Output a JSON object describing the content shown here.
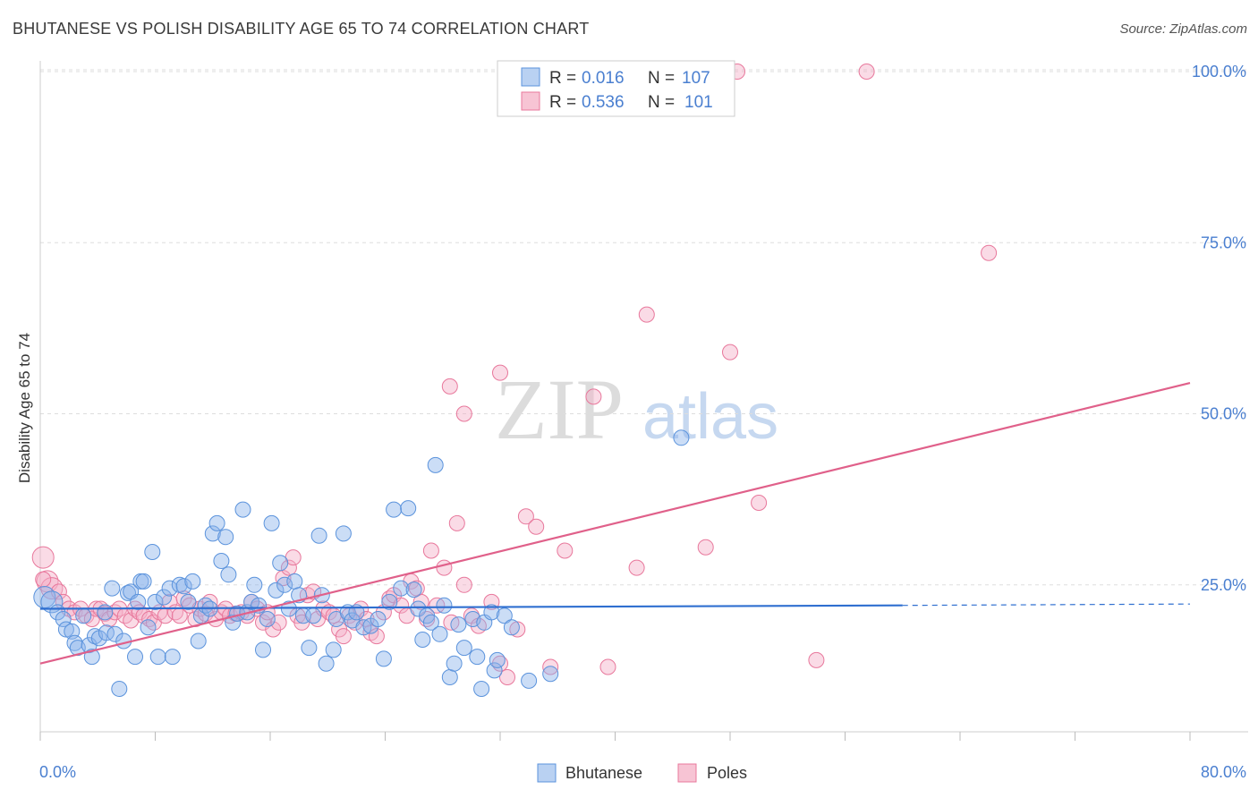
{
  "title": "BHUTANESE VS POLISH DISABILITY AGE 65 TO 74 CORRELATION CHART",
  "source": "Source: ZipAtlas.com",
  "watermark": {
    "zip": "ZIP",
    "atlas": "atlas"
  },
  "colors": {
    "blue": "#5b93dc",
    "blue_fill": "#b9d1f2",
    "pink": "#e8789c",
    "pink_fill": "#f7c4d4",
    "tick": "#4a7fd0",
    "grid": "#dddddd"
  },
  "legend": {
    "rows": [
      {
        "r_label": "R =",
        "r_value": "0.016",
        "n_label": "N =",
        "n_value": "107"
      },
      {
        "r_label": "R =",
        "r_value": "0.536",
        "n_label": "N =",
        "n_value": "101"
      }
    ]
  },
  "bottom_legend": [
    "Bhutanese",
    "Poles"
  ],
  "chart_data": {
    "type": "scatter",
    "title": "BHUTANESE VS POLISH DISABILITY AGE 65 TO 74 CORRELATION CHART",
    "xlabel": "",
    "ylabel": "Disability Age 65 to 74",
    "xlim": [
      0,
      80
    ],
    "ylim": [
      0,
      105
    ],
    "x_tick_labels": [
      "0.0%",
      "80.0%"
    ],
    "y_ticks": [
      25,
      50,
      75,
      100
    ],
    "y_tick_labels": [
      "25.0%",
      "50.0%",
      "75.0%",
      "100.0%"
    ],
    "grid": true,
    "legend_position": "top-center",
    "series": [
      {
        "name": "Bhutanese",
        "color": "#5b93dc",
        "r": 0.016,
        "n": 107,
        "trend": {
          "x0": 0,
          "y0": 21.5,
          "x1": 60,
          "y1": 22.0,
          "x_dashed_end": 80,
          "y_dashed_end": 22.2
        },
        "points": [
          [
            0.3,
            23.2
          ],
          [
            0.8,
            22.5
          ],
          [
            1.2,
            21
          ],
          [
            1.6,
            20
          ],
          [
            1.8,
            18.5
          ],
          [
            2.2,
            18.2
          ],
          [
            2.4,
            16.5
          ],
          [
            2.6,
            15.8
          ],
          [
            3.0,
            20.5
          ],
          [
            3.4,
            16.2
          ],
          [
            3.6,
            14.5
          ],
          [
            3.8,
            17.5
          ],
          [
            4.1,
            17.2
          ],
          [
            4.5,
            21
          ],
          [
            4.6,
            18
          ],
          [
            5.0,
            24.5
          ],
          [
            5.2,
            17.8
          ],
          [
            5.5,
            9.8
          ],
          [
            5.8,
            16.8
          ],
          [
            6.1,
            23.8
          ],
          [
            6.3,
            24
          ],
          [
            6.6,
            14.5
          ],
          [
            6.8,
            22.5
          ],
          [
            7.0,
            25.5
          ],
          [
            7.2,
            25.5
          ],
          [
            7.5,
            18.8
          ],
          [
            7.8,
            29.8
          ],
          [
            8.0,
            22.5
          ],
          [
            8.2,
            14.5
          ],
          [
            8.6,
            23.2
          ],
          [
            9.0,
            24.5
          ],
          [
            9.2,
            14.5
          ],
          [
            9.7,
            25
          ],
          [
            10,
            24.8
          ],
          [
            10.3,
            22.5
          ],
          [
            10.6,
            25.5
          ],
          [
            11.0,
            16.8
          ],
          [
            11.2,
            20.5
          ],
          [
            11.5,
            22
          ],
          [
            11.8,
            21.5
          ],
          [
            12.0,
            32.5
          ],
          [
            12.3,
            34
          ],
          [
            12.6,
            28.5
          ],
          [
            12.9,
            32
          ],
          [
            13.1,
            26.5
          ],
          [
            13.4,
            19.5
          ],
          [
            13.7,
            20.8
          ],
          [
            14.1,
            36
          ],
          [
            14.4,
            21
          ],
          [
            14.7,
            22.5
          ],
          [
            14.9,
            25
          ],
          [
            15.2,
            22
          ],
          [
            15.5,
            15.5
          ],
          [
            15.8,
            20
          ],
          [
            16.1,
            34
          ],
          [
            16.4,
            24.2
          ],
          [
            16.7,
            28.2
          ],
          [
            17,
            25
          ],
          [
            17.3,
            21.5
          ],
          [
            17.7,
            25.5
          ],
          [
            18.0,
            23.5
          ],
          [
            18.3,
            20.5
          ],
          [
            18.7,
            15.8
          ],
          [
            19.0,
            20.5
          ],
          [
            19.4,
            32.2
          ],
          [
            19.6,
            23.5
          ],
          [
            19.9,
            13.5
          ],
          [
            20.4,
            15.5
          ],
          [
            20.6,
            20
          ],
          [
            21.1,
            32.5
          ],
          [
            21.4,
            21
          ],
          [
            21.7,
            19.8
          ],
          [
            22.0,
            21
          ],
          [
            22.5,
            18.8
          ],
          [
            23.0,
            19
          ],
          [
            23.5,
            20
          ],
          [
            23.9,
            14.2
          ],
          [
            24.3,
            22.5
          ],
          [
            24.6,
            36
          ],
          [
            25.1,
            24.5
          ],
          [
            25.6,
            36.2
          ],
          [
            26.0,
            24.3
          ],
          [
            26.3,
            21.5
          ],
          [
            26.6,
            17
          ],
          [
            26.9,
            20.5
          ],
          [
            27.2,
            19.5
          ],
          [
            27.5,
            42.5
          ],
          [
            27.8,
            17.8
          ],
          [
            28.1,
            22
          ],
          [
            28.5,
            11.5
          ],
          [
            28.8,
            13.5
          ],
          [
            29.1,
            19.2
          ],
          [
            29.5,
            15.8
          ],
          [
            30.1,
            20
          ],
          [
            30.4,
            14.5
          ],
          [
            30.7,
            9.8
          ],
          [
            30.9,
            19.5
          ],
          [
            31.4,
            21
          ],
          [
            31.6,
            12.5
          ],
          [
            31.8,
            14
          ],
          [
            32.3,
            20.5
          ],
          [
            32.8,
            18.8
          ],
          [
            34.0,
            11
          ],
          [
            35.5,
            12
          ],
          [
            44.6,
            46.5
          ]
        ]
      },
      {
        "name": "Poles",
        "color": "#e8789c",
        "r": 0.536,
        "n": 101,
        "trend": {
          "x0": 0,
          "y0": 13.5,
          "x1": 80,
          "y1": 54.5
        },
        "points": [
          [
            0.2,
            29
          ],
          [
            0.5,
            25.5
          ],
          [
            0.8,
            24.5
          ],
          [
            1.3,
            24
          ],
          [
            1.6,
            22.5
          ],
          [
            2.0,
            21.5
          ],
          [
            2.4,
            21
          ],
          [
            2.8,
            21.5
          ],
          [
            3.2,
            20.5
          ],
          [
            3.6,
            20
          ],
          [
            3.9,
            21.5
          ],
          [
            4.2,
            21.5
          ],
          [
            4.5,
            20.8
          ],
          [
            4.8,
            20
          ],
          [
            5.2,
            21
          ],
          [
            5.5,
            21.5
          ],
          [
            5.9,
            20.5
          ],
          [
            6.3,
            19.8
          ],
          [
            6.6,
            21.5
          ],
          [
            6.9,
            21
          ],
          [
            7.2,
            20.5
          ],
          [
            7.6,
            20
          ],
          [
            7.9,
            19.5
          ],
          [
            8.3,
            21
          ],
          [
            8.7,
            20.5
          ],
          [
            9.0,
            22.5
          ],
          [
            9.4,
            21
          ],
          [
            9.7,
            20.5
          ],
          [
            10.0,
            23
          ],
          [
            10.4,
            22
          ],
          [
            10.8,
            20
          ],
          [
            11.1,
            21.5
          ],
          [
            11.5,
            20.8
          ],
          [
            11.8,
            22.5
          ],
          [
            12.2,
            20
          ],
          [
            12.6,
            21
          ],
          [
            12.9,
            21.5
          ],
          [
            13.2,
            20.5
          ],
          [
            13.6,
            20.8
          ],
          [
            14.0,
            21
          ],
          [
            14.4,
            20.5
          ],
          [
            14.7,
            22.5
          ],
          [
            15.1,
            21.5
          ],
          [
            15.5,
            19.5
          ],
          [
            15.8,
            21
          ],
          [
            16.2,
            18.5
          ],
          [
            16.6,
            19.5
          ],
          [
            16.9,
            26
          ],
          [
            17.3,
            27.5
          ],
          [
            17.6,
            29
          ],
          [
            17.9,
            20.5
          ],
          [
            18.2,
            19.5
          ],
          [
            18.6,
            23.5
          ],
          [
            19.0,
            24
          ],
          [
            19.3,
            20
          ],
          [
            19.7,
            21.5
          ],
          [
            20.1,
            21
          ],
          [
            20.4,
            20.5
          ],
          [
            20.8,
            18.5
          ],
          [
            21.1,
            17.5
          ],
          [
            21.5,
            20.5
          ],
          [
            21.9,
            19.5
          ],
          [
            22.3,
            21.5
          ],
          [
            22.7,
            20
          ],
          [
            23.0,
            18
          ],
          [
            23.4,
            17.5
          ],
          [
            23.9,
            21
          ],
          [
            24.3,
            23
          ],
          [
            24.6,
            23.5
          ],
          [
            25.1,
            22
          ],
          [
            25.5,
            20.5
          ],
          [
            25.8,
            25.5
          ],
          [
            26.2,
            24.5
          ],
          [
            26.5,
            22.5
          ],
          [
            26.9,
            20
          ],
          [
            27.2,
            30
          ],
          [
            27.6,
            22
          ],
          [
            28.1,
            27.5
          ],
          [
            28.6,
            19.5
          ],
          [
            29.0,
            34
          ],
          [
            29.5,
            25
          ],
          [
            30.0,
            20.5
          ],
          [
            30.5,
            19
          ],
          [
            31.4,
            22.5
          ],
          [
            32.0,
            13.5
          ],
          [
            32.5,
            11.5
          ],
          [
            33.2,
            18.5
          ],
          [
            33.8,
            35
          ],
          [
            34.5,
            33.5
          ],
          [
            35.5,
            13
          ],
          [
            36.5,
            30
          ],
          [
            38.5,
            52.5
          ],
          [
            39.5,
            13
          ],
          [
            40.5,
            100
          ],
          [
            41.5,
            27.5
          ],
          [
            42.2,
            64.5
          ],
          [
            46.3,
            30.5
          ],
          [
            48.0,
            59
          ],
          [
            48.5,
            100
          ],
          [
            50.0,
            37
          ],
          [
            54.0,
            14
          ],
          [
            57.5,
            100
          ],
          [
            66.0,
            73.5
          ],
          [
            0.2,
            25.8
          ],
          [
            28.5,
            54
          ],
          [
            29.5,
            50
          ],
          [
            32.0,
            56
          ]
        ]
      }
    ]
  }
}
